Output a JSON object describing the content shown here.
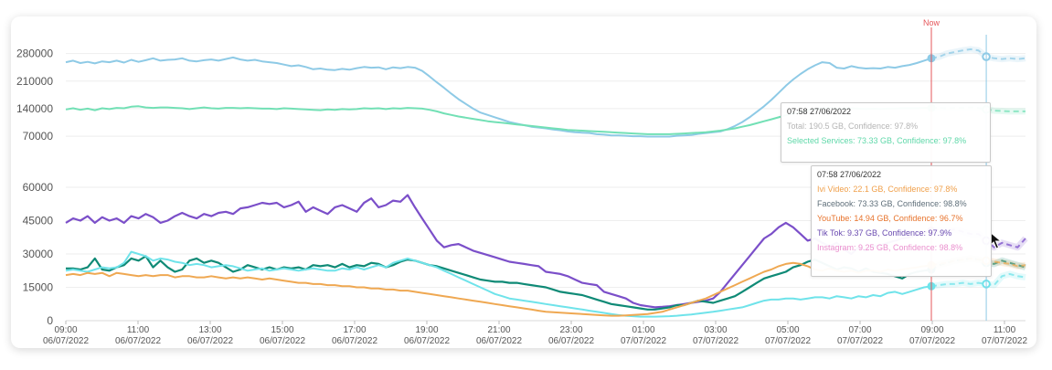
{
  "chart_data": [
    {
      "type": "line",
      "panel": "totals",
      "y_ticks": [
        "280000",
        "210000",
        "140000",
        "70000"
      ],
      "ylim": [
        40000,
        300000
      ],
      "grid": true,
      "series": [
        {
          "key": "total",
          "color": "#8ecae6",
          "values": [
            258000,
            262000,
            256000,
            259000,
            255000,
            260000,
            258000,
            262000,
            257000,
            264000,
            259000,
            263000,
            268000,
            262000,
            264000,
            265000,
            268000,
            262000,
            260000,
            263000,
            265000,
            262000,
            266000,
            270000,
            265000,
            262000,
            264000,
            260000,
            258000,
            256000,
            252000,
            248000,
            250000,
            246000,
            240000,
            242000,
            239000,
            238000,
            241000,
            239000,
            243000,
            246000,
            244000,
            245000,
            240000,
            245000,
            243000,
            246000,
            244000,
            236000,
            222000,
            207000,
            193000,
            178000,
            164000,
            152000,
            140000,
            130000,
            124000,
            118000,
            112000,
            106000,
            102000,
            98000,
            94000,
            92000,
            90000,
            87000,
            85000,
            82000,
            80000,
            79000,
            78000,
            75000,
            74000,
            72000,
            72000,
            71000,
            70000,
            70000,
            69000,
            69000,
            69000,
            69000,
            71000,
            72000,
            73000,
            76000,
            78000,
            80000,
            82000,
            88000,
            96000,
            106000,
            118000,
            132000,
            146000,
            162000,
            180000,
            198000,
            214000,
            228000,
            240000,
            250000,
            258000,
            256000,
            244000,
            242000,
            248000,
            244000,
            242000,
            243000,
            242000,
            246000,
            244000,
            248000,
            251000,
            256000,
            262000,
            268000
          ],
          "forecast": [
            272000,
            280000,
            284000,
            288000,
            291000,
            288000,
            272000,
            268000,
            266000,
            268000,
            266000,
            268000
          ]
        },
        {
          "key": "selected",
          "color": "#72e0b5",
          "values": [
            138000,
            141000,
            137000,
            140000,
            136000,
            141000,
            139000,
            142000,
            141000,
            145000,
            146000,
            143000,
            142000,
            143000,
            143000,
            142000,
            141000,
            139000,
            141000,
            143000,
            141000,
            140000,
            142000,
            142000,
            141000,
            142000,
            141000,
            140000,
            140000,
            139000,
            141000,
            140000,
            139000,
            138000,
            137000,
            136000,
            138000,
            137000,
            139000,
            138000,
            139000,
            141000,
            140000,
            141000,
            139000,
            141000,
            140000,
            142000,
            141000,
            140000,
            137000,
            133000,
            128000,
            124000,
            120000,
            117000,
            114000,
            111000,
            108000,
            106000,
            104000,
            102000,
            100000,
            98000,
            96000,
            94000,
            92000,
            90000,
            88000,
            86000,
            85000,
            84000,
            83000,
            82000,
            81000,
            80000,
            79000,
            78000,
            77000,
            76000,
            75000,
            75000,
            75000,
            75000,
            76000,
            77000,
            78000,
            79000,
            80000,
            82000,
            84000,
            87000,
            90000,
            94000,
            98000,
            103000,
            108000,
            113000,
            118000,
            123000,
            128000,
            132000,
            136000,
            139000,
            141000,
            142000,
            140000,
            140000,
            141000,
            140000,
            139000,
            140000,
            139000,
            140000,
            140000,
            141000,
            141000,
            141000,
            142000,
            142000
          ],
          "forecast": [
            142000,
            141000,
            142000,
            142000,
            143000,
            142000,
            138000,
            135000,
            134000,
            133000,
            133000,
            133000
          ]
        }
      ]
    },
    {
      "type": "line",
      "panel": "services",
      "y_ticks": [
        "60000",
        "45000",
        "30000",
        "15000",
        "0"
      ],
      "ylim": [
        0,
        60000
      ],
      "grid": true,
      "series": [
        {
          "key": "tiktok",
          "color": "#7b4fc9",
          "values": [
            44000,
            46000,
            45000,
            47000,
            44000,
            46500,
            45000,
            46000,
            44000,
            47000,
            46000,
            48000,
            46500,
            44000,
            45000,
            47000,
            48500,
            47000,
            46000,
            48000,
            47000,
            48500,
            49000,
            48000,
            50500,
            51000,
            52000,
            53000,
            52500,
            53000,
            51000,
            52000,
            53500,
            49000,
            51000,
            49500,
            48000,
            51000,
            52000,
            50500,
            49000,
            53000,
            55000,
            51000,
            52000,
            54000,
            53500,
            56500,
            51000,
            46000,
            41000,
            36000,
            33000,
            34000,
            34500,
            33000,
            31500,
            30500,
            29500,
            28500,
            27500,
            26500,
            26000,
            25500,
            25000,
            24500,
            22000,
            21500,
            21000,
            20000,
            18500,
            17000,
            16500,
            16000,
            13000,
            12000,
            11000,
            10000,
            8000,
            7000,
            6500,
            6000,
            6200,
            6500,
            7000,
            7500,
            8000,
            8500,
            9000,
            10000,
            13000,
            17000,
            21000,
            25000,
            29000,
            33000,
            37000,
            39000,
            42000,
            44000,
            42000,
            39000,
            36000,
            37000,
            35000,
            33500,
            35000,
            32000,
            30000,
            33000,
            31500,
            33500,
            34000,
            35000,
            36000,
            37000,
            37500,
            38500,
            39500,
            40500
          ],
          "forecast": [
            41000,
            40500,
            41000,
            40000,
            39000,
            39000,
            36000,
            33000,
            35000,
            34000,
            33000,
            37000
          ]
        },
        {
          "key": "facebook",
          "color": "#0f8a76",
          "values": [
            23500,
            23500,
            23000,
            24000,
            28000,
            23000,
            22500,
            24000,
            25000,
            28000,
            27000,
            29000,
            24000,
            27000,
            24000,
            22000,
            23000,
            27000,
            28000,
            26000,
            27000,
            26000,
            24000,
            22000,
            23000,
            25000,
            24000,
            23000,
            24000,
            23000,
            24000,
            23500,
            24000,
            23000,
            25000,
            24500,
            25000,
            24000,
            25500,
            24000,
            25000,
            24500,
            26000,
            25500,
            24000,
            25000,
            26500,
            27500,
            27000,
            26000,
            25000,
            24500,
            23500,
            22500,
            21500,
            20500,
            19500,
            18500,
            18000,
            17500,
            17500,
            17000,
            17000,
            16500,
            16000,
            15500,
            15000,
            14000,
            13000,
            12500,
            12000,
            11500,
            10500,
            9500,
            8500,
            7500,
            7000,
            6500,
            6000,
            5500,
            5000,
            5000,
            5500,
            6000,
            7000,
            7000,
            8000,
            9000,
            8500,
            8000,
            9000,
            10000,
            11000,
            13000,
            15000,
            17000,
            19000,
            20000,
            21000,
            22000,
            24000,
            25000,
            26500,
            27500,
            26000,
            24500,
            23000,
            24000,
            23500,
            22000,
            23500,
            22000,
            21500,
            21000,
            20000,
            19000,
            21000,
            22000,
            22500,
            23000
          ],
          "forecast": [
            25000,
            26000,
            27000,
            27500,
            28000,
            27500,
            26000,
            25500,
            27000,
            26000,
            25000,
            24000
          ]
        },
        {
          "key": "instagram",
          "color": "#6fe3ea",
          "values": [
            22500,
            23000,
            22500,
            22000,
            23000,
            24000,
            23500,
            24000,
            26000,
            31000,
            30000,
            29000,
            27000,
            28000,
            27500,
            26500,
            26000,
            25000,
            25500,
            25000,
            24000,
            24500,
            25000,
            24500,
            23500,
            22500,
            23000,
            23500,
            22500,
            23000,
            23500,
            23000,
            22500,
            23000,
            23500,
            23000,
            22500,
            22500,
            23500,
            23000,
            24000,
            23000,
            24000,
            25000,
            24000,
            26000,
            27000,
            28000,
            27000,
            26000,
            25000,
            24000,
            22500,
            21000,
            19500,
            18000,
            16500,
            15000,
            13500,
            12000,
            11000,
            10000,
            9500,
            9000,
            8500,
            8000,
            7500,
            7000,
            6500,
            6000,
            5500,
            5000,
            4500,
            4000,
            3500,
            3000,
            2500,
            2200,
            2000,
            1800,
            1800,
            1800,
            1900,
            2000,
            2200,
            2500,
            2800,
            3200,
            3600,
            4000,
            4500,
            5000,
            5500,
            6000,
            7000,
            8000,
            9000,
            9500,
            9500,
            10000,
            10000,
            9500,
            10000,
            10500,
            10500,
            10000,
            11000,
            10500,
            10000,
            11000,
            10500,
            11500,
            11000,
            12500,
            13000,
            12000,
            13000,
            14000,
            15000,
            15500
          ],
          "forecast": [
            16000,
            16500,
            16500,
            17000,
            16500,
            17000,
            16500,
            16000,
            20000,
            21000,
            20000,
            19500
          ]
        },
        {
          "key": "ivi",
          "color": "#efa852",
          "values": [
            20500,
            21000,
            20500,
            21500,
            21000,
            21500,
            20000,
            21500,
            21000,
            20500,
            20000,
            20500,
            20000,
            20500,
            20500,
            19500,
            20000,
            20000,
            19500,
            19500,
            20000,
            19500,
            19000,
            19500,
            19000,
            19500,
            19000,
            18500,
            19000,
            18500,
            18000,
            17500,
            17000,
            17000,
            16500,
            16500,
            16000,
            16000,
            15500,
            15500,
            15000,
            15000,
            14500,
            14500,
            14000,
            14000,
            13500,
            13500,
            13000,
            12500,
            12000,
            11500,
            11000,
            10500,
            10000,
            9500,
            9000,
            8500,
            8000,
            7500,
            7000,
            6500,
            6000,
            5500,
            5000,
            4500,
            4000,
            3800,
            3600,
            3400,
            3200,
            3000,
            2800,
            2600,
            2400,
            2200,
            2200,
            2400,
            2600,
            2800,
            3000,
            3500,
            4000,
            5000,
            6000,
            7000,
            8000,
            9000,
            10000,
            11500,
            13000,
            14500,
            16000,
            17500,
            19000,
            20500,
            22000,
            23000,
            24500,
            25500,
            26000,
            25500,
            24500,
            23000,
            22500,
            23500,
            22500,
            22000,
            22500,
            21500,
            22500,
            22500,
            22000,
            23000,
            22500,
            23000,
            23500,
            24000,
            24500,
            25000
          ],
          "forecast": [
            25500,
            26000,
            27000,
            27500,
            28000,
            27500,
            27000,
            26500,
            26000,
            25500,
            24500,
            25000
          ]
        }
      ]
    }
  ],
  "x_ticks": [
    {
      "time": "09:00",
      "date": "06/07/2022"
    },
    {
      "time": "11:00",
      "date": "06/07/2022"
    },
    {
      "time": "13:00",
      "date": "06/07/2022"
    },
    {
      "time": "15:00",
      "date": "06/07/2022"
    },
    {
      "time": "17:00",
      "date": "06/07/2022"
    },
    {
      "time": "19:00",
      "date": "06/07/2022"
    },
    {
      "time": "21:00",
      "date": "06/07/2022"
    },
    {
      "time": "23:00",
      "date": "06/07/2022"
    },
    {
      "time": "01:00",
      "date": "07/07/2022"
    },
    {
      "time": "03:00",
      "date": "07/07/2022"
    },
    {
      "time": "05:00",
      "date": "07/07/2022"
    },
    {
      "time": "07:00",
      "date": "07/07/2022"
    },
    {
      "time": "09:00",
      "date": "07/07/2022"
    },
    {
      "time": "11:00",
      "date": "07/07/2022"
    }
  ],
  "now_label": "Now",
  "colors": {
    "now_line": "#e5575b",
    "hover_line": "#8ecae6",
    "grid": "#eeeeee",
    "axis_text": "#555555"
  },
  "tooltip_top": {
    "header": "07:58 27/06/2022",
    "rows": [
      {
        "text": "Total: 190.5 GB, Confidence: 97.8%",
        "color": "#b5b5b5"
      },
      {
        "text": "Selected Services: 73.33 GB, Confidence: 97.8%",
        "color": "#5fd8a9"
      }
    ]
  },
  "tooltip_bottom": {
    "header": "07:58 27/06/2022",
    "rows": [
      {
        "text": "Ivi Video: 22.1 GB, Confidence: 97.8%",
        "color": "#f0a04b"
      },
      {
        "text": "Facebook: 73.33 GB, Confidence: 98.8%",
        "color": "#5f6f7a"
      },
      {
        "text": "YouTube: 14.94 GB, Confidence: 96.7%",
        "color": "#e7732c"
      },
      {
        "text": "Tik Tok: 9.37 GB, Confidence: 97.9%",
        "color": "#6a4bb0"
      },
      {
        "text": "Instagram: 9.25 GB, Confidence: 98.8%",
        "color": "#ea8fce"
      }
    ]
  },
  "cursor_icon": "arrow-cursor-icon"
}
